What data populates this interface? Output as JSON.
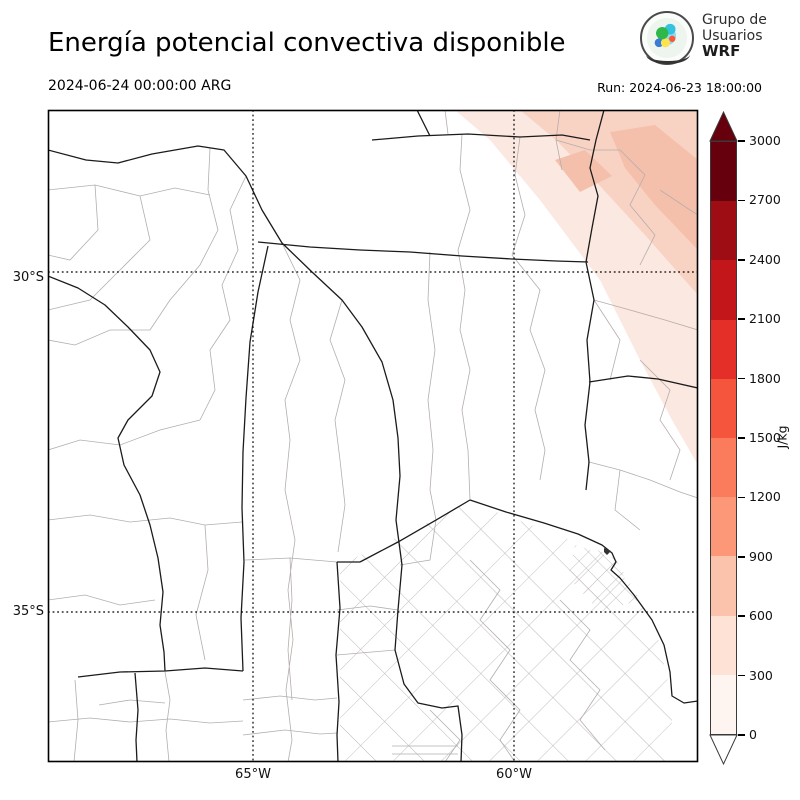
{
  "header": {
    "title": "Energía potencial convectiva disponible",
    "logo": {
      "line1": "Grupo de",
      "line2": "Usuarios",
      "line3": "WRF"
    }
  },
  "times": {
    "valid": "2024-06-24 00:00:00 ARG",
    "run": "Run: 2024-06-23 18:00:00"
  },
  "map": {
    "lat_labels": [
      "30°S",
      "35°S"
    ],
    "lon_labels": [
      "65°W",
      "60°W"
    ]
  },
  "chart_data": {
    "type": "heatmap",
    "title": "Energía potencial convectiva disponible",
    "variable": "CAPE",
    "units": "J/kg",
    "valid_time": "2024-06-24 00:00:00 ARG",
    "run_time": "2024-06-23 18:00:00",
    "axes": {
      "lat_ticks": [
        "30°S",
        "35°S"
      ],
      "lon_ticks": [
        "65°W",
        "60°W"
      ],
      "gridlines": "dotted"
    },
    "colorbar": {
      "label": "J/kg",
      "ticks": [
        0,
        300,
        600,
        900,
        1200,
        1500,
        1800,
        2100,
        2400,
        2700,
        3000
      ],
      "colors": [
        "#fff5f0",
        "#fee2d5",
        "#fcc3ac",
        "#fc9777",
        "#fb7c5c",
        "#f6553d",
        "#e32f27",
        "#c3161b",
        "#9e0d14",
        "#67000d"
      ],
      "over": "#67000d",
      "under": "#ffffff",
      "extend": "both"
    },
    "field_summary": {
      "background_value": 0,
      "shaded_region": "northeast corner of domain",
      "shaded_range_jkg": "0–900",
      "pattern": "light CAPE band oriented NW–SE over the northeast; rest of domain ~0 J/kg"
    }
  }
}
